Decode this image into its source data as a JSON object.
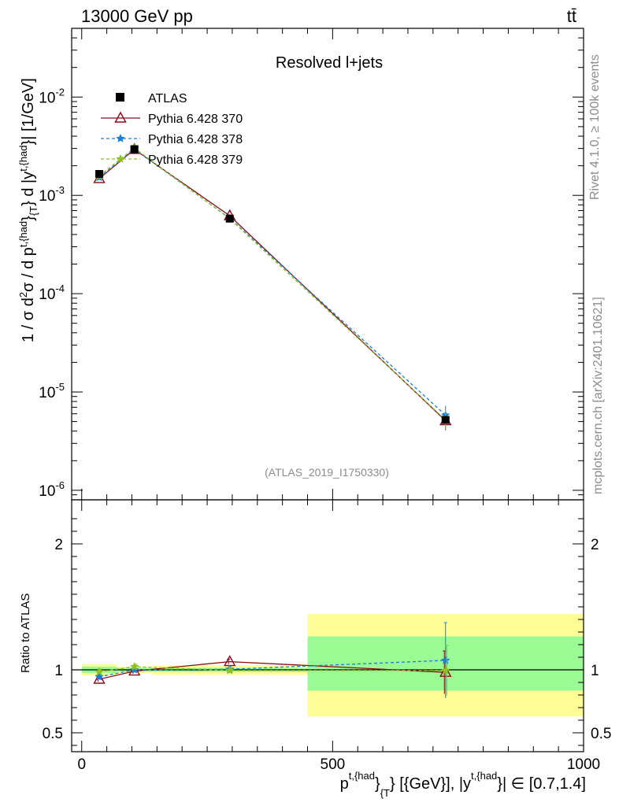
{
  "header": {
    "left_title": "13000 GeV pp",
    "right_title": "tt̄"
  },
  "side_labels": {
    "rivet": "Rivet 4.1.0, ≥ 100k events",
    "mcplots": "mcplots.cern.ch [arXiv:2401.10621]"
  },
  "chart_data": {
    "type": "line",
    "title": "Resolved l+jets",
    "analysis_id": "(ATLAS_2019_I1750330)",
    "xlabel": {
      "p": "p",
      "p_sup": "t,{had",
      "brace1": "}",
      "p_sub": "{T",
      "brace2": "}",
      "mid": " [{GeV}], |y",
      "y_sup": "t,{had",
      "brace3": "}",
      "tail": "| ∈ [0.7,1.4]"
    },
    "ylabel": {
      "a": "1 / σ d",
      "a_sup": "2",
      "b": "σ / d p",
      "b_sup": "t,{had",
      "brace1": "}",
      "b_sub": "{T",
      "c": "} d |y",
      "c_sup": "t,{had",
      "d": "}| [1/GeV]"
    },
    "xlim": [
      -20,
      1000
    ],
    "x_ticks": [
      {
        "value": 0,
        "label": "0"
      },
      {
        "value": 500,
        "label": "500"
      },
      {
        "value": 1000,
        "label": "1000"
      }
    ],
    "ylim_log": [
      8e-07,
      0.05
    ],
    "y_ticks": [
      {
        "value": 0.01,
        "base": "10",
        "exp": "-2"
      },
      {
        "value": 0.001,
        "base": "10",
        "exp": "-3"
      },
      {
        "value": 0.0001,
        "base": "10",
        "exp": "-4"
      },
      {
        "value": 1e-05,
        "base": "10",
        "exp": "-5"
      },
      {
        "value": 1e-06,
        "base": "10",
        "exp": "-6"
      }
    ],
    "legend_position": "top-left",
    "data": {
      "name": "ATLAS",
      "points": [
        {
          "x": 35,
          "y": 0.00165,
          "xlow": 0,
          "xhigh": 70
        },
        {
          "x": 105,
          "y": 0.00295,
          "xlow": 70,
          "xhigh": 140
        },
        {
          "x": 295,
          "y": 0.00058,
          "xlow": 140,
          "xhigh": 450
        },
        {
          "x": 725,
          "y": 5.2e-06,
          "xlow": 450,
          "xhigh": 1000
        }
      ]
    },
    "series": [
      {
        "name": "Pythia 6.428 370",
        "color": "#8b0a1a",
        "marker": "triangle",
        "dash": "none",
        "values": [
          0.00148,
          0.00293,
          0.00062,
          5.1e-06
        ]
      },
      {
        "name": "Pythia 6.428 378",
        "color": "#1a7fd6",
        "marker": "star",
        "dash": "4,3",
        "values": [
          0.00152,
          0.00296,
          0.000585,
          5.8e-06
        ]
      },
      {
        "name": "Pythia 6.428 379",
        "color": "#8dc21f",
        "marker": "star",
        "dash": "4,3",
        "values": [
          0.00158,
          0.00303,
          0.000578,
          5.2e-06
        ]
      }
    ],
    "ratio": {
      "ylabel": "Ratio to ATLAS",
      "ylim": [
        0.35,
        2.35
      ],
      "y_ticks": [
        {
          "value": 0.5,
          "label": "0.5"
        },
        {
          "value": 1,
          "label": "1"
        },
        {
          "value": 2,
          "label": "2"
        }
      ],
      "bands": [
        {
          "xlow": 0,
          "xhigh": 70,
          "stat_low": 0.975,
          "stat_high": 1.025,
          "tot_low": 0.955,
          "tot_high": 1.045
        },
        {
          "xlow": 70,
          "xhigh": 140,
          "stat_low": 0.985,
          "stat_high": 1.015,
          "tot_low": 0.975,
          "tot_high": 1.025
        },
        {
          "xlow": 140,
          "xhigh": 450,
          "stat_low": 0.985,
          "stat_high": 1.015,
          "tot_low": 0.96,
          "tot_high": 1.035
        },
        {
          "xlow": 450,
          "xhigh": 1000,
          "stat_low": 0.835,
          "stat_high": 1.265,
          "tot_low": 0.63,
          "tot_high": 1.445
        }
      ],
      "series_values": [
        [
          0.925,
          0.99,
          1.065,
          0.98
        ],
        [
          0.945,
          1.0,
          1.005,
          1.075
        ],
        [
          0.985,
          1.025,
          0.995,
          0.995
        ]
      ],
      "last_point_errors": [
        0.17,
        0.3,
        0.2
      ]
    }
  }
}
